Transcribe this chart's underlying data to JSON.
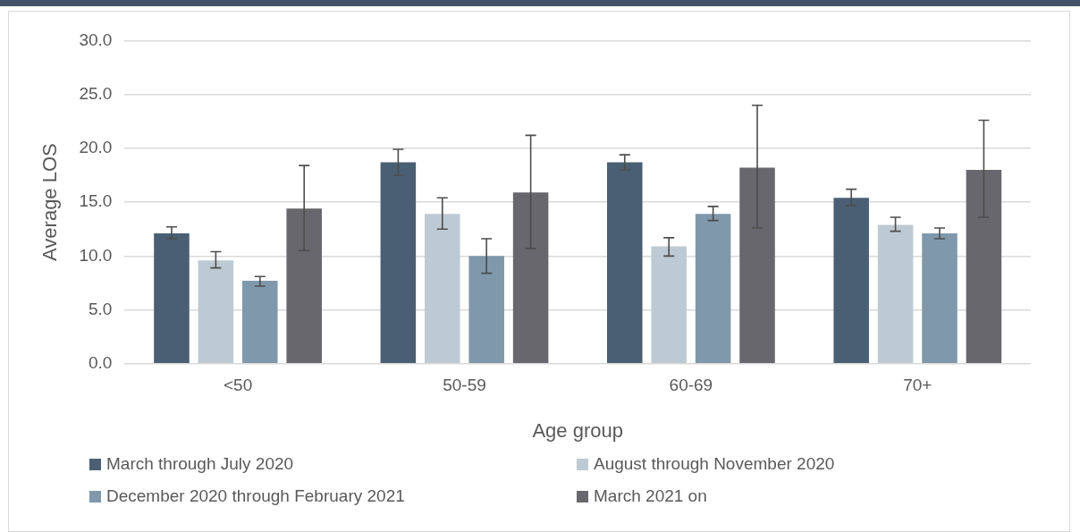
{
  "chart_data": {
    "type": "bar",
    "xlabel": "Age group",
    "ylabel": "Average LOS",
    "categories": [
      "<50",
      "50-59",
      "60-69",
      "70+"
    ],
    "series": [
      {
        "name": "March through July 2020",
        "color": "#4a5f73",
        "values": [
          12.1,
          18.7,
          18.7,
          15.4
        ],
        "errors": [
          [
            11.6,
            12.7
          ],
          [
            17.5,
            19.9
          ],
          [
            18.0,
            19.4
          ],
          [
            14.7,
            16.2
          ]
        ]
      },
      {
        "name": "August through November 2020",
        "color": "#bdcad3",
        "values": [
          9.6,
          13.9,
          10.9,
          12.9
        ],
        "errors": [
          [
            8.9,
            10.4
          ],
          [
            12.5,
            15.4
          ],
          [
            10.0,
            11.7
          ],
          [
            12.3,
            13.6
          ]
        ]
      },
      {
        "name": "December 2020 through February 2021",
        "color": "#7f98ab",
        "values": [
          7.7,
          10.0,
          13.9,
          12.1
        ],
        "errors": [
          [
            7.2,
            8.1
          ],
          [
            8.4,
            11.6
          ],
          [
            13.3,
            14.6
          ],
          [
            11.6,
            12.6
          ]
        ]
      },
      {
        "name": "March 2021 on",
        "color": "#68676d",
        "values": [
          14.4,
          15.9,
          18.2,
          18.0
        ],
        "errors": [
          [
            10.5,
            18.4
          ],
          [
            10.7,
            21.2
          ],
          [
            12.6,
            24.0
          ],
          [
            13.6,
            22.6
          ]
        ]
      }
    ],
    "ylim": [
      0,
      30
    ],
    "yticks": [
      {
        "value": 0,
        "label": "0.0"
      },
      {
        "value": 5,
        "label": "5.0"
      },
      {
        "value": 10,
        "label": "10.0"
      },
      {
        "value": 15,
        "label": "15.0"
      },
      {
        "value": 20,
        "label": "20.0"
      },
      {
        "value": 25,
        "label": "25.0"
      },
      {
        "value": 30,
        "label": "30.0"
      }
    ],
    "grid": "y",
    "legend": "bottom"
  }
}
